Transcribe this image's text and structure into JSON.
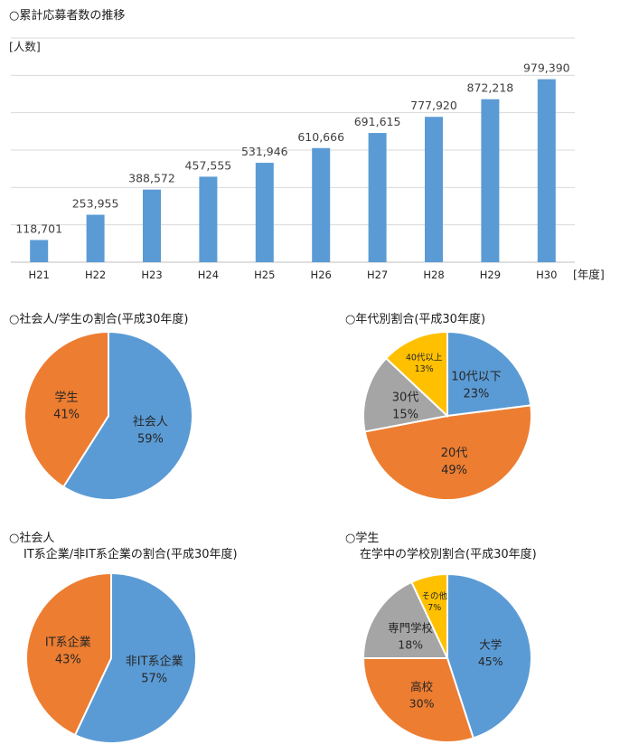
{
  "chart_data": [
    {
      "type": "bar",
      "title": "○累計応募者数の推移",
      "ylabel": "[人数]",
      "xlabel": "[年度]",
      "categories": [
        "H21",
        "H22",
        "H23",
        "H24",
        "H25",
        "H26",
        "H27",
        "H28",
        "H29",
        "H30"
      ],
      "values": [
        118701,
        253955,
        388572,
        457555,
        531946,
        610666,
        691615,
        777920,
        872218,
        979390
      ],
      "value_labels": [
        "118,701",
        "253,955",
        "388,572",
        "457,555",
        "531,946",
        "610,666",
        "691,615",
        "777,920",
        "872,218",
        "979,390"
      ],
      "ylim": [
        0,
        1200000
      ],
      "grid": true,
      "color": "#5b9bd5"
    },
    {
      "type": "pie",
      "title": "○社会人/学生の割合(平成30年度)",
      "slices": [
        {
          "label": "社会人",
          "pct": "59%",
          "value": 59,
          "color": "#5b9bd5"
        },
        {
          "label": "学生",
          "pct": "41%",
          "value": 41,
          "color": "#ed7d31"
        }
      ]
    },
    {
      "type": "pie",
      "title": "○年代別割合(平成30年度)",
      "slices": [
        {
          "label": "10代以下",
          "pct": "23%",
          "value": 23,
          "color": "#5b9bd5"
        },
        {
          "label": "20代",
          "pct": "49%",
          "value": 49,
          "color": "#ed7d31"
        },
        {
          "label": "30代",
          "pct": "15%",
          "value": 15,
          "color": "#a5a5a5"
        },
        {
          "label": "40代以上",
          "pct": "13%",
          "value": 13,
          "color": "#ffc000"
        }
      ]
    },
    {
      "type": "pie",
      "title_line1": "○社会人",
      "title_line2": "IT系企業/非IT系企業の割合(平成30年度)",
      "slices": [
        {
          "label": "非IT系企業",
          "pct": "57%",
          "value": 57,
          "color": "#5b9bd5"
        },
        {
          "label": "IT系企業",
          "pct": "43%",
          "value": 43,
          "color": "#ed7d31"
        }
      ]
    },
    {
      "type": "pie",
      "title_line1": "○学生",
      "title_line2": "在学中の学校別割合(平成30年度)",
      "slices": [
        {
          "label": "大学",
          "pct": "45%",
          "value": 45,
          "color": "#5b9bd5"
        },
        {
          "label": "高校",
          "pct": "30%",
          "value": 30,
          "color": "#ed7d31"
        },
        {
          "label": "専門学校",
          "pct": "18%",
          "value": 18,
          "color": "#a5a5a5"
        },
        {
          "label": "その他",
          "pct": "7%",
          "value": 7,
          "color": "#ffc000"
        }
      ]
    }
  ]
}
